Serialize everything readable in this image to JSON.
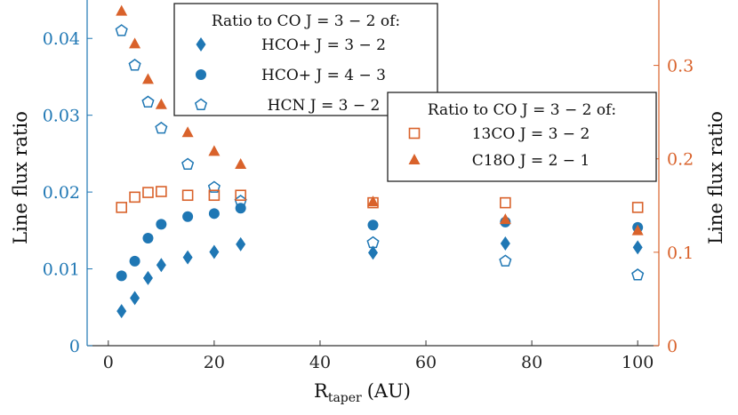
{
  "chart_data": {
    "type": "scatter",
    "xlabel": "R",
    "xlabel_sub": "taper",
    "xlabel_unit": "(AU)",
    "ylabel_left": "Line flux ratio",
    "ylabel_right": "Line flux ratio",
    "xlim": [
      -4,
      104
    ],
    "xticks": [
      0,
      20,
      40,
      60,
      80,
      100
    ],
    "ylim_left": [
      0,
      0.045
    ],
    "yticks_left": [
      0,
      0.01,
      0.02,
      0.03,
      0.04
    ],
    "ylim_right": [
      0,
      0.37
    ],
    "yticks_right": [
      0,
      0.1,
      0.2,
      0.3
    ],
    "grid": false,
    "colors": {
      "left_axis": "#1f77b4",
      "right_axis": "#d9622b"
    },
    "legends": [
      {
        "title": "Ratio to CO J = 3 − 2 of:",
        "placement": "top-center",
        "entries": [
          "HCO+ J = 3 − 2",
          "HCO+ J = 4 − 3",
          "HCN J = 3 − 2"
        ]
      },
      {
        "title": "Ratio to CO J = 3 − 2 of:",
        "placement": "right",
        "entries": [
          "13CO J = 3 − 2",
          "C18O J = 2 − 1"
        ]
      }
    ],
    "series": [
      {
        "name": "HCO+ J = 3 − 2",
        "axis": "left",
        "marker": "diamond-filled",
        "x": [
          2.5,
          5,
          7.5,
          10,
          15,
          20,
          25,
          50,
          75,
          100
        ],
        "y": [
          0.0045,
          0.0062,
          0.0088,
          0.0105,
          0.0115,
          0.0122,
          0.0132,
          0.0121,
          0.0133,
          0.0128
        ]
      },
      {
        "name": "HCO+ J = 4 − 3",
        "axis": "left",
        "marker": "circle-filled",
        "x": [
          2.5,
          5,
          7.5,
          10,
          15,
          20,
          25,
          50,
          75,
          100
        ],
        "y": [
          0.0091,
          0.011,
          0.014,
          0.0158,
          0.0168,
          0.0172,
          0.0179,
          0.0157,
          0.0161,
          0.0154
        ]
      },
      {
        "name": "HCN J = 3 − 2",
        "axis": "left",
        "marker": "pentagon-open",
        "x": [
          2.5,
          5,
          7.5,
          10,
          15,
          20,
          25,
          50,
          75,
          100
        ],
        "y": [
          0.041,
          0.0365,
          0.0317,
          0.0283,
          0.0236,
          0.0206,
          0.0188,
          0.0134,
          0.011,
          0.0092
        ]
      },
      {
        "name": "13CO J = 3 − 2",
        "axis": "right",
        "marker": "square-open",
        "x": [
          2.5,
          5,
          7.5,
          10,
          15,
          20,
          25,
          50,
          75,
          100
        ],
        "y": [
          0.148,
          0.159,
          0.164,
          0.165,
          0.161,
          0.161,
          0.161,
          0.153,
          0.153,
          0.148
        ]
      },
      {
        "name": "C18O J = 2 − 1",
        "axis": "right",
        "marker": "triangle-filled",
        "x": [
          2.5,
          5,
          7.5,
          10,
          15,
          20,
          25,
          50,
          75,
          100
        ],
        "y": [
          0.358,
          0.323,
          0.285,
          0.258,
          0.228,
          0.208,
          0.194,
          0.154,
          0.135,
          0.123
        ]
      }
    ]
  }
}
